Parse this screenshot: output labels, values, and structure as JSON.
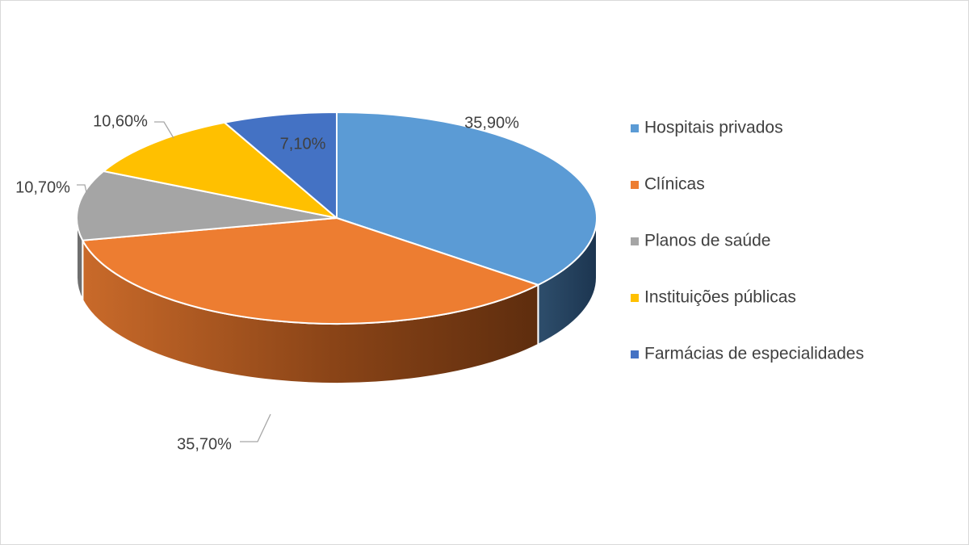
{
  "chart_data": {
    "type": "pie",
    "title": "",
    "style": "3d-pie",
    "legend_position": "right",
    "categories": [
      "Hospitais privados",
      "Clínicas",
      "Planos de saúde",
      "Instituições públicas",
      "Farmácias de especialidades"
    ],
    "values": [
      35.9,
      35.7,
      10.7,
      10.6,
      7.1
    ],
    "value_labels": [
      "35,90%",
      "35,70%",
      "10,70%",
      "10,60%",
      "7,10%"
    ],
    "colors": [
      "#5B9BD5",
      "#ED7D31",
      "#A5A5A5",
      "#FFC000",
      "#4472C4"
    ]
  }
}
